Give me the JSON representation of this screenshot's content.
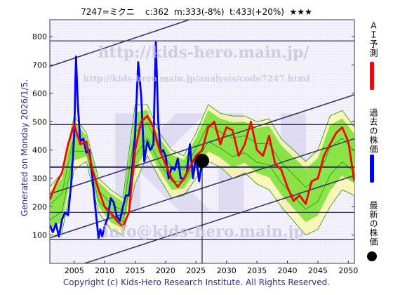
{
  "header": {
    "title": "7247=ミクニ    c:362  m:333(-8%)  t:433(+20%)  ★★★"
  },
  "side_text": "Generated on Monday 2026/1/5.",
  "footer": "Copyright (c) Kids-Hero Research Institute. All Rights Reserved.",
  "watermarks": {
    "url1": "http://kids-hero.main.jp/",
    "url2": "http://kids-hero.main.jp/analysis/code7247.html",
    "url3": "info@kids-hero.main.jp",
    "logo": "KH"
  },
  "legend": [
    {
      "label": "ＡＩ予測",
      "color": "#ff0000"
    },
    {
      "label": "過去の株価",
      "color": "#0000ff"
    },
    {
      "label": "最新の株価",
      "color": "#000000"
    }
  ],
  "colors": {
    "prediction": "#ff0000",
    "history": "#0000ff",
    "band_fill": "#66dd22",
    "band_line": "#1a9a1a",
    "yellow_fill": "#fff8a0",
    "frame": "#333366",
    "trend": "#3a3a6a",
    "background": "#f5f3fa"
  },
  "chart_data": {
    "type": "line",
    "xlim": [
      2001,
      2051
    ],
    "ylim": [
      0,
      860
    ],
    "x_ticks": [
      2005,
      2010,
      2015,
      2020,
      2025,
      2030,
      2035,
      2040,
      2045,
      2050
    ],
    "y_ticks": [
      100,
      200,
      300,
      400,
      500,
      600,
      700,
      800
    ],
    "horizontal_levels": [
      340,
      180,
      85,
      490,
      785
    ],
    "current_point": {
      "year": 2026.0,
      "value": 362
    },
    "trend_channels": [
      {
        "x": [
          2001,
          2051
        ],
        "y": [
          245,
          595
        ]
      },
      {
        "x": [
          2001,
          2051
        ],
        "y": [
          90,
          440
        ]
      },
      {
        "x": [
          2001,
          2051
        ],
        "y": [
          -40,
          310
        ]
      },
      {
        "x": [
          2001,
          2026
        ],
        "y": [
          695,
          875
        ]
      }
    ],
    "series": [
      {
        "name": "過去の株価",
        "x": [
          2001.0,
          2001.5,
          2002.0,
          2002.5,
          2003.0,
          2003.5,
          2004.0,
          2004.5,
          2005.0,
          2005.3,
          2005.6,
          2006.0,
          2006.5,
          2007.0,
          2007.5,
          2008.0,
          2008.5,
          2009.0,
          2009.3,
          2009.6,
          2010.0,
          2010.5,
          2011.0,
          2011.5,
          2012.0,
          2012.5,
          2013.0,
          2013.5,
          2014.0,
          2014.5,
          2015.0,
          2015.5,
          2016.0,
          2016.5,
          2017.0,
          2017.5,
          2018.0,
          2018.4,
          2018.8,
          2019.2,
          2019.6,
          2020.0,
          2020.5,
          2021.0,
          2021.5,
          2022.0,
          2022.5,
          2023.0,
          2023.5,
          2024.0,
          2024.5,
          2025.0,
          2025.5,
          2026.0
        ],
        "values": [
          135,
          110,
          140,
          95,
          155,
          180,
          170,
          280,
          450,
          730,
          560,
          430,
          440,
          390,
          400,
          300,
          190,
          90,
          120,
          95,
          130,
          160,
          230,
          215,
          165,
          150,
          200,
          240,
          240,
          330,
          450,
          710,
          590,
          360,
          430,
          400,
          420,
          780,
          500,
          390,
          400,
          380,
          300,
          340,
          330,
          370,
          300,
          300,
          320,
          420,
          300,
          380,
          290,
          362
        ]
      },
      {
        "name": "ＡＩ予測",
        "x": [
          2001.0,
          2002.0,
          2003.0,
          2004.0,
          2005.0,
          2006.0,
          2007.0,
          2008.0,
          2009.0,
          2010.0,
          2011.0,
          2012.0,
          2013.0,
          2014.0,
          2015.0,
          2016.0,
          2017.0,
          2018.0,
          2019.0,
          2020.0,
          2021.0,
          2022.0,
          2023.0,
          2024.0,
          2025.0,
          2026.0,
          2027.0,
          2028.0,
          2029.0,
          2030.0,
          2031.0,
          2032.0,
          2033.0,
          2034.0,
          2035.0,
          2036.0,
          2037.0,
          2038.0,
          2039.0,
          2040.0,
          2041.0,
          2042.0,
          2043.0,
          2044.0,
          2045.0,
          2046.0,
          2047.0,
          2048.0,
          2049.0,
          2050.0,
          2051.0
        ],
        "values": [
          225,
          280,
          320,
          420,
          490,
          420,
          430,
          330,
          260,
          200,
          180,
          150,
          130,
          180,
          400,
          500,
          520,
          480,
          400,
          350,
          300,
          270,
          300,
          340,
          380,
          400,
          480,
          500,
          420,
          480,
          470,
          380,
          420,
          500,
          400,
          380,
          450,
          350,
          330,
          270,
          220,
          240,
          210,
          290,
          300,
          380,
          420,
          460,
          480,
          430,
          290
        ]
      }
    ],
    "bands": {
      "x": [
        2001.0,
        2003.0,
        2005.0,
        2007.0,
        2009.0,
        2011.0,
        2013.0,
        2015.0,
        2017.0,
        2019.0,
        2021.0,
        2023.0,
        2025.0,
        2027.0,
        2029.0,
        2031.0,
        2033.0,
        2035.0,
        2037.0,
        2039.0,
        2041.0,
        2043.0,
        2045.0,
        2047.0,
        2049.0,
        2051.0
      ],
      "upper": [
        270,
        320,
        520,
        460,
        300,
        260,
        230,
        560,
        560,
        460,
        400,
        380,
        460,
        560,
        530,
        520,
        520,
        500,
        510,
        440,
        400,
        360,
        400,
        520,
        540,
        480
      ],
      "lower": [
        90,
        110,
        330,
        360,
        180,
        120,
        100,
        280,
        380,
        300,
        230,
        240,
        300,
        360,
        340,
        300,
        320,
        280,
        260,
        200,
        150,
        100,
        120,
        200,
        260,
        240
      ]
    }
  }
}
